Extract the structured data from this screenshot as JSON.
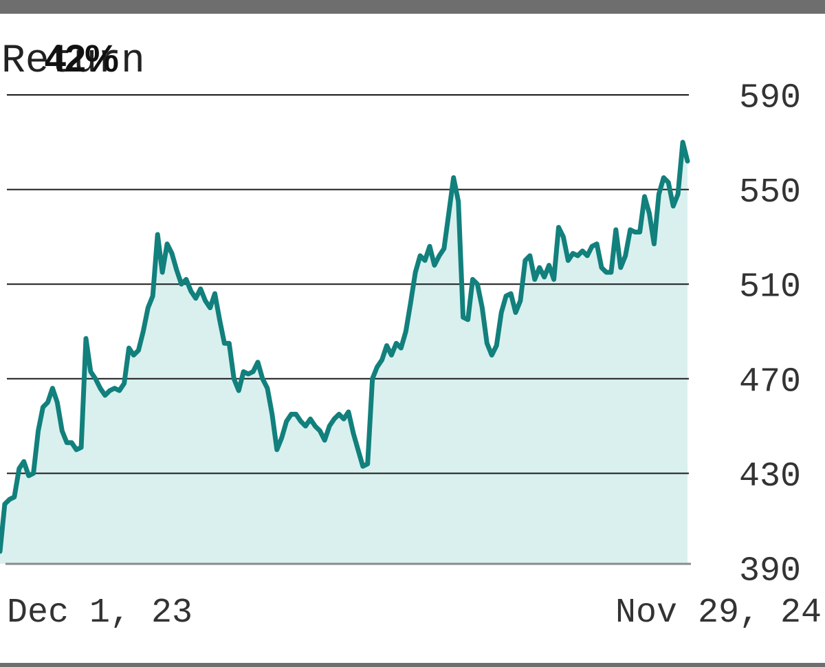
{
  "title": {
    "label": "Return",
    "value": "42%"
  },
  "colors": {
    "line": "#12807c",
    "fill": "#d9f0ef",
    "grid": "#1a1a1a",
    "frame": "#6e6e6e"
  },
  "chart_data": {
    "type": "area",
    "xlabel": "",
    "ylabel": "",
    "ylim": [
      390,
      590
    ],
    "yticks": [
      "590",
      "550",
      "510",
      "470",
      "430",
      "390"
    ],
    "xtick_start": "Dec 1, 23",
    "xtick_end": "Nov 29, 24",
    "grid": true,
    "y_axis_side": "right",
    "series": [
      {
        "values": [
          397,
          417,
          419,
          420,
          432,
          435,
          429,
          430,
          448,
          458,
          460,
          466,
          460,
          448,
          443,
          443,
          440,
          441,
          487,
          473,
          470,
          466,
          463,
          465,
          466,
          465,
          468,
          483,
          480,
          482,
          490,
          500,
          505,
          531,
          515,
          527,
          523,
          516,
          510,
          512,
          507,
          504,
          508,
          503,
          500,
          506,
          495,
          485,
          485,
          470,
          465,
          473,
          472,
          473,
          477,
          470,
          466,
          455,
          440,
          445,
          452,
          455,
          455,
          452,
          450,
          453,
          450,
          448,
          444,
          450,
          453,
          455,
          453,
          456,
          447,
          440,
          433,
          434,
          470,
          475,
          478,
          484,
          480,
          485,
          483,
          490,
          502,
          515,
          522,
          520,
          526,
          518,
          522,
          525,
          540,
          555,
          545,
          496,
          495,
          512,
          510,
          500,
          485,
          480,
          484,
          498,
          505,
          506,
          498,
          503,
          520,
          522,
          512,
          517,
          513,
          518,
          512,
          534,
          530,
          520,
          523,
          522,
          524,
          522,
          526,
          527,
          517,
          515,
          515,
          533,
          517,
          522,
          533,
          532,
          532,
          547,
          540,
          527,
          548,
          555,
          553,
          543,
          548,
          570,
          562
        ]
      }
    ]
  }
}
